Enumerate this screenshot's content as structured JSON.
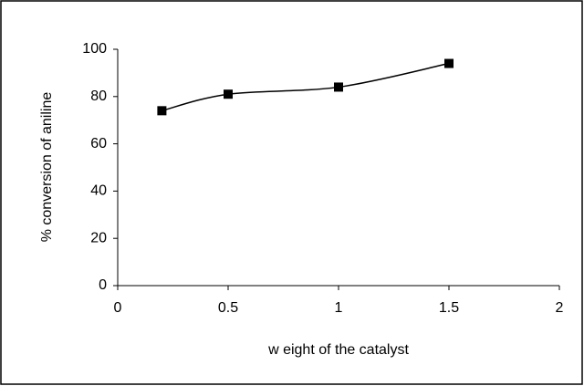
{
  "chart_data": {
    "type": "line",
    "xlabel": "w eight of the catalyst",
    "ylabel": "% conversion of aniline",
    "x": [
      0.2,
      0.5,
      1,
      1.5
    ],
    "series": [
      {
        "color": "#000000",
        "values": [
          74,
          81,
          84,
          94
        ]
      }
    ],
    "xlim": [
      0,
      2
    ],
    "xticks": [
      0,
      0.5,
      1,
      1.5,
      2
    ],
    "ylim": [
      0,
      100
    ],
    "yticks": [
      0,
      20,
      40,
      60,
      80,
      100
    ],
    "smooth": true,
    "marker": "square",
    "grid": false
  }
}
